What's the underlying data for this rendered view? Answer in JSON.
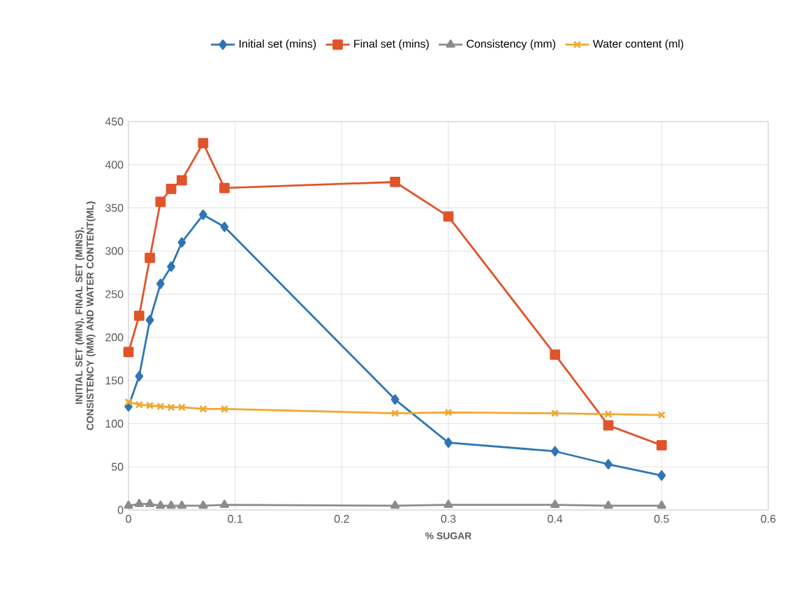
{
  "chart_data": {
    "type": "line",
    "xlabel": "% SUGAR",
    "ylabel": "INITIAL SET (MIN), FINAL SET (MINS), CONSISTENCY (MM) AND WATER CONTENT(ML)",
    "x": [
      0,
      0.01,
      0.02,
      0.03,
      0.04,
      0.05,
      0.07,
      0.09,
      0.25,
      0.3,
      0.4,
      0.45,
      0.5
    ],
    "series": [
      {
        "name": "Initial set (mins)",
        "color": "#2e75b6",
        "marker": "diamond",
        "values": [
          120,
          155,
          220,
          262,
          282,
          310,
          342,
          328,
          128,
          78,
          68,
          53,
          40
        ]
      },
      {
        "name": "Final set (mins)",
        "color": "#e0542a",
        "marker": "square",
        "values": [
          183,
          225,
          292,
          357,
          372,
          382,
          425,
          373,
          380,
          340,
          180,
          98,
          75
        ]
      },
      {
        "name": "Consistency (mm)",
        "color": "#8c8c8c",
        "marker": "triangle",
        "values": [
          5,
          7,
          7,
          5,
          5,
          5,
          5,
          6,
          5,
          6,
          6,
          5,
          5
        ]
      },
      {
        "name": "Water content (ml)",
        "color": "#f0a830",
        "marker": "cross",
        "values": [
          125,
          122,
          121,
          120,
          119,
          119,
          117,
          117,
          112,
          113,
          112,
          111,
          110
        ]
      }
    ],
    "xlim": [
      0,
      0.6
    ],
    "xticks": [
      0,
      0.1,
      0.2,
      0.3,
      0.4,
      0.5,
      0.6
    ],
    "ylim": [
      0,
      450
    ],
    "yticks": [
      0,
      50,
      100,
      150,
      200,
      250,
      300,
      350,
      400,
      450
    ],
    "grid": true,
    "legend": "top",
    "line_style": "solid"
  }
}
